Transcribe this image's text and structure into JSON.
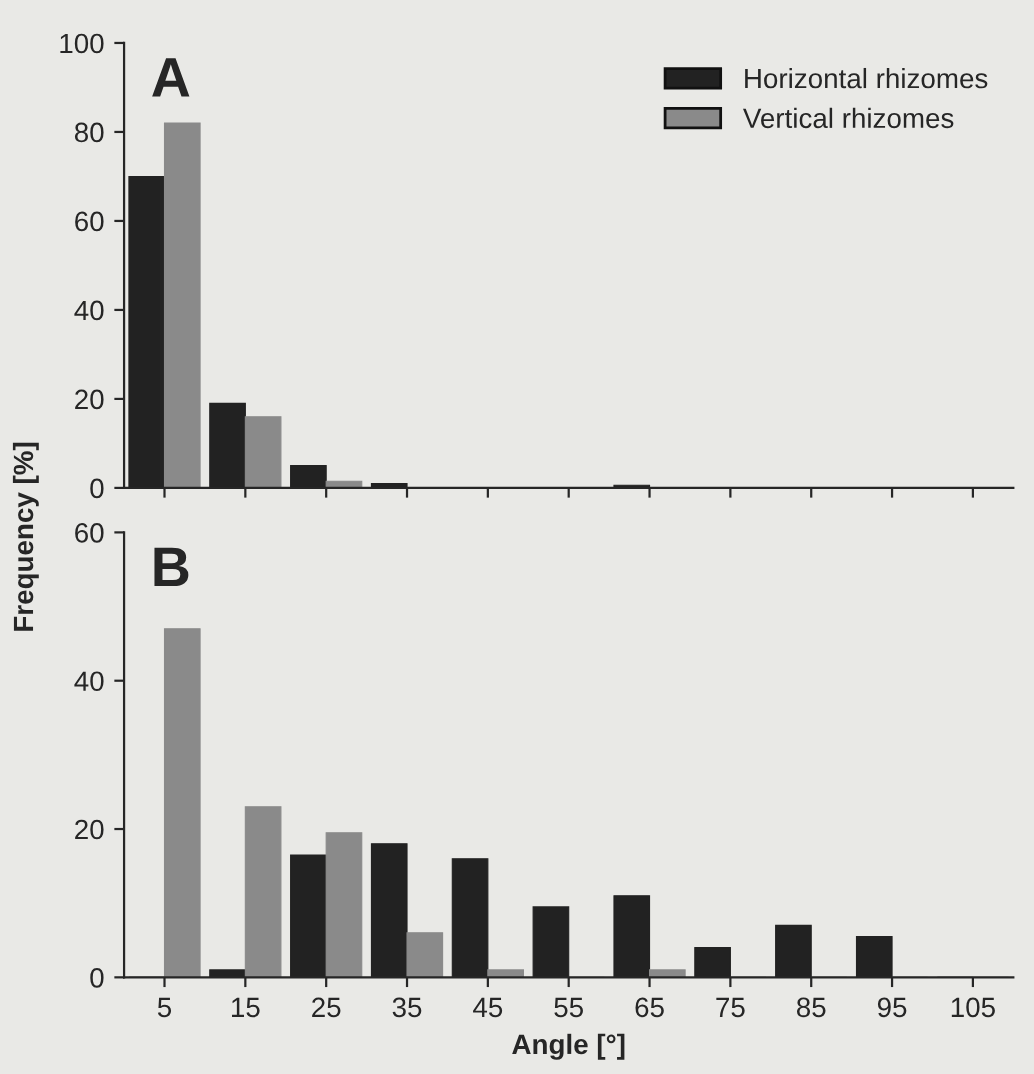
{
  "chart_data": [
    {
      "type": "bar",
      "categories": [
        "5",
        "15",
        "25",
        "35",
        "45",
        "55",
        "65",
        "75",
        "85",
        "95",
        "105"
      ],
      "ylabel": "Frequency [%]",
      "annotations": [
        "A"
      ],
      "ylim": [
        0,
        100
      ],
      "yticks": [
        0,
        20,
        40,
        60,
        80,
        100
      ],
      "tick_labels": "y",
      "legend": "top right",
      "series": [
        {
          "name": "Horizontal rhizomes",
          "color": "#222222",
          "values": [
            70,
            19,
            5,
            1,
            null,
            null,
            0.6,
            null,
            0,
            0,
            0
          ]
        },
        {
          "name": "Vertical rhizomes",
          "color": "#8a8a8a",
          "values": [
            82,
            16,
            1.5,
            0,
            0,
            0,
            0,
            0,
            0,
            0,
            0
          ]
        }
      ]
    },
    {
      "type": "bar",
      "categories": [
        "5",
        "15",
        "25",
        "35",
        "45",
        "55",
        "65",
        "75",
        "85",
        "95",
        "105"
      ],
      "xlabel": "Angle [°]",
      "annotations": [
        "B"
      ],
      "ylim": [
        0,
        60
      ],
      "yticks": [
        0,
        20,
        40,
        60
      ],
      "series": [
        {
          "color": "#222222",
          "values": [
            0,
            1,
            16.5,
            18,
            16,
            9.5,
            11,
            4,
            7,
            5.5,
            0
          ]
        },
        {
          "color": "#8a8a8a",
          "values": [
            47,
            23,
            19.5,
            6,
            1,
            0,
            1,
            0,
            0,
            0,
            0
          ]
        }
      ]
    }
  ]
}
